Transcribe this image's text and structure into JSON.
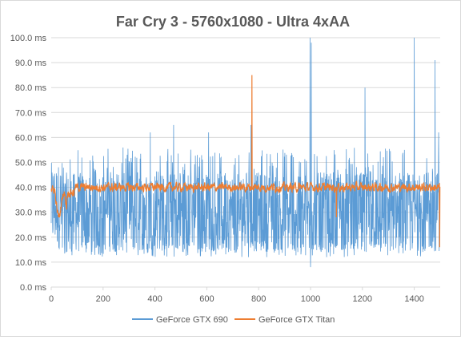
{
  "chart_data": {
    "type": "line",
    "title": "Far Cry 3 - 5760x1080 - Ultra 4xAA",
    "xlabel": "",
    "ylabel": "",
    "x_range": [
      0,
      1500
    ],
    "ylim": [
      0,
      100
    ],
    "x_ticks": [
      "0",
      "200",
      "400",
      "600",
      "800",
      "1000",
      "1200",
      "1400"
    ],
    "y_ticks": [
      "0.0 ms",
      "10.0 ms",
      "20.0 ms",
      "30.0 ms",
      "40.0 ms",
      "50.0 ms",
      "60.0 ms",
      "70.0 ms",
      "80.0 ms",
      "90.0 ms",
      "100.0 ms"
    ],
    "grid": "horizontal",
    "legend_position": "bottom",
    "series": [
      {
        "name": "GeForce GTX 690",
        "color": "#5b9bd5",
        "approx_mean": 30,
        "approx_range": [
          8,
          100
        ],
        "spikes": [
          [
            382,
            62
          ],
          [
            472,
            65
          ],
          [
            607,
            62
          ],
          [
            770,
            65
          ],
          [
            998,
            100
          ],
          [
            1003,
            98
          ],
          [
            1210,
            80
          ],
          [
            1400,
            100
          ],
          [
            1480,
            91
          ],
          [
            1494,
            62
          ]
        ]
      },
      {
        "name": "GeForce GTX Titan",
        "color": "#ed7d31",
        "approx_mean": 40,
        "approx_range": [
          16,
          85
        ],
        "spikes": [
          [
            774,
            85
          ],
          [
            1100,
            28
          ],
          [
            1498,
            16
          ]
        ]
      }
    ]
  }
}
